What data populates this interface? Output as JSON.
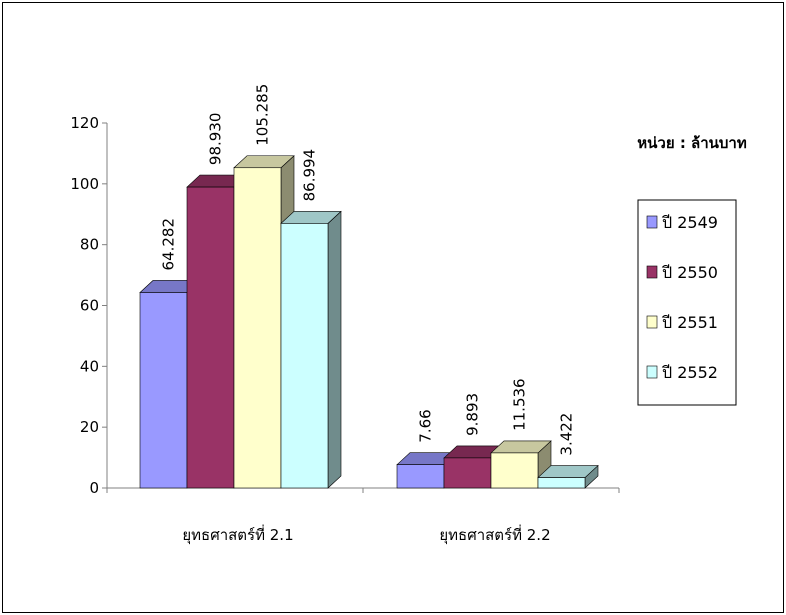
{
  "chart_data": {
    "type": "bar",
    "unit_label": "หน่วย : ล้านบาท",
    "categories": [
      "ยุทธศาสตร์ที่ 2.1",
      "ยุทธศาสตร์ที่ 2.2"
    ],
    "series": [
      {
        "name": "ปี 2549",
        "values": [
          64.282,
          7.66
        ],
        "labels": [
          "64.282",
          "7.66"
        ],
        "color": "#9999ff"
      },
      {
        "name": "ปี 2550",
        "values": [
          98.93,
          9.893
        ],
        "labels": [
          "98.930",
          "9.893"
        ],
        "color": "#993366"
      },
      {
        "name": "ปี 2551",
        "values": [
          105.285,
          11.536
        ],
        "labels": [
          "105.285",
          "11.536"
        ],
        "color": "#ffffcc"
      },
      {
        "name": "ปี 2552",
        "values": [
          86.994,
          3.422
        ],
        "labels": [
          "86.994",
          "3.422"
        ],
        "color": "#ccffff"
      }
    ],
    "yticks": [
      0,
      20,
      40,
      60,
      80,
      100,
      120
    ],
    "ylim": [
      0,
      120
    ],
    "legend_position": "right",
    "grid": false
  }
}
